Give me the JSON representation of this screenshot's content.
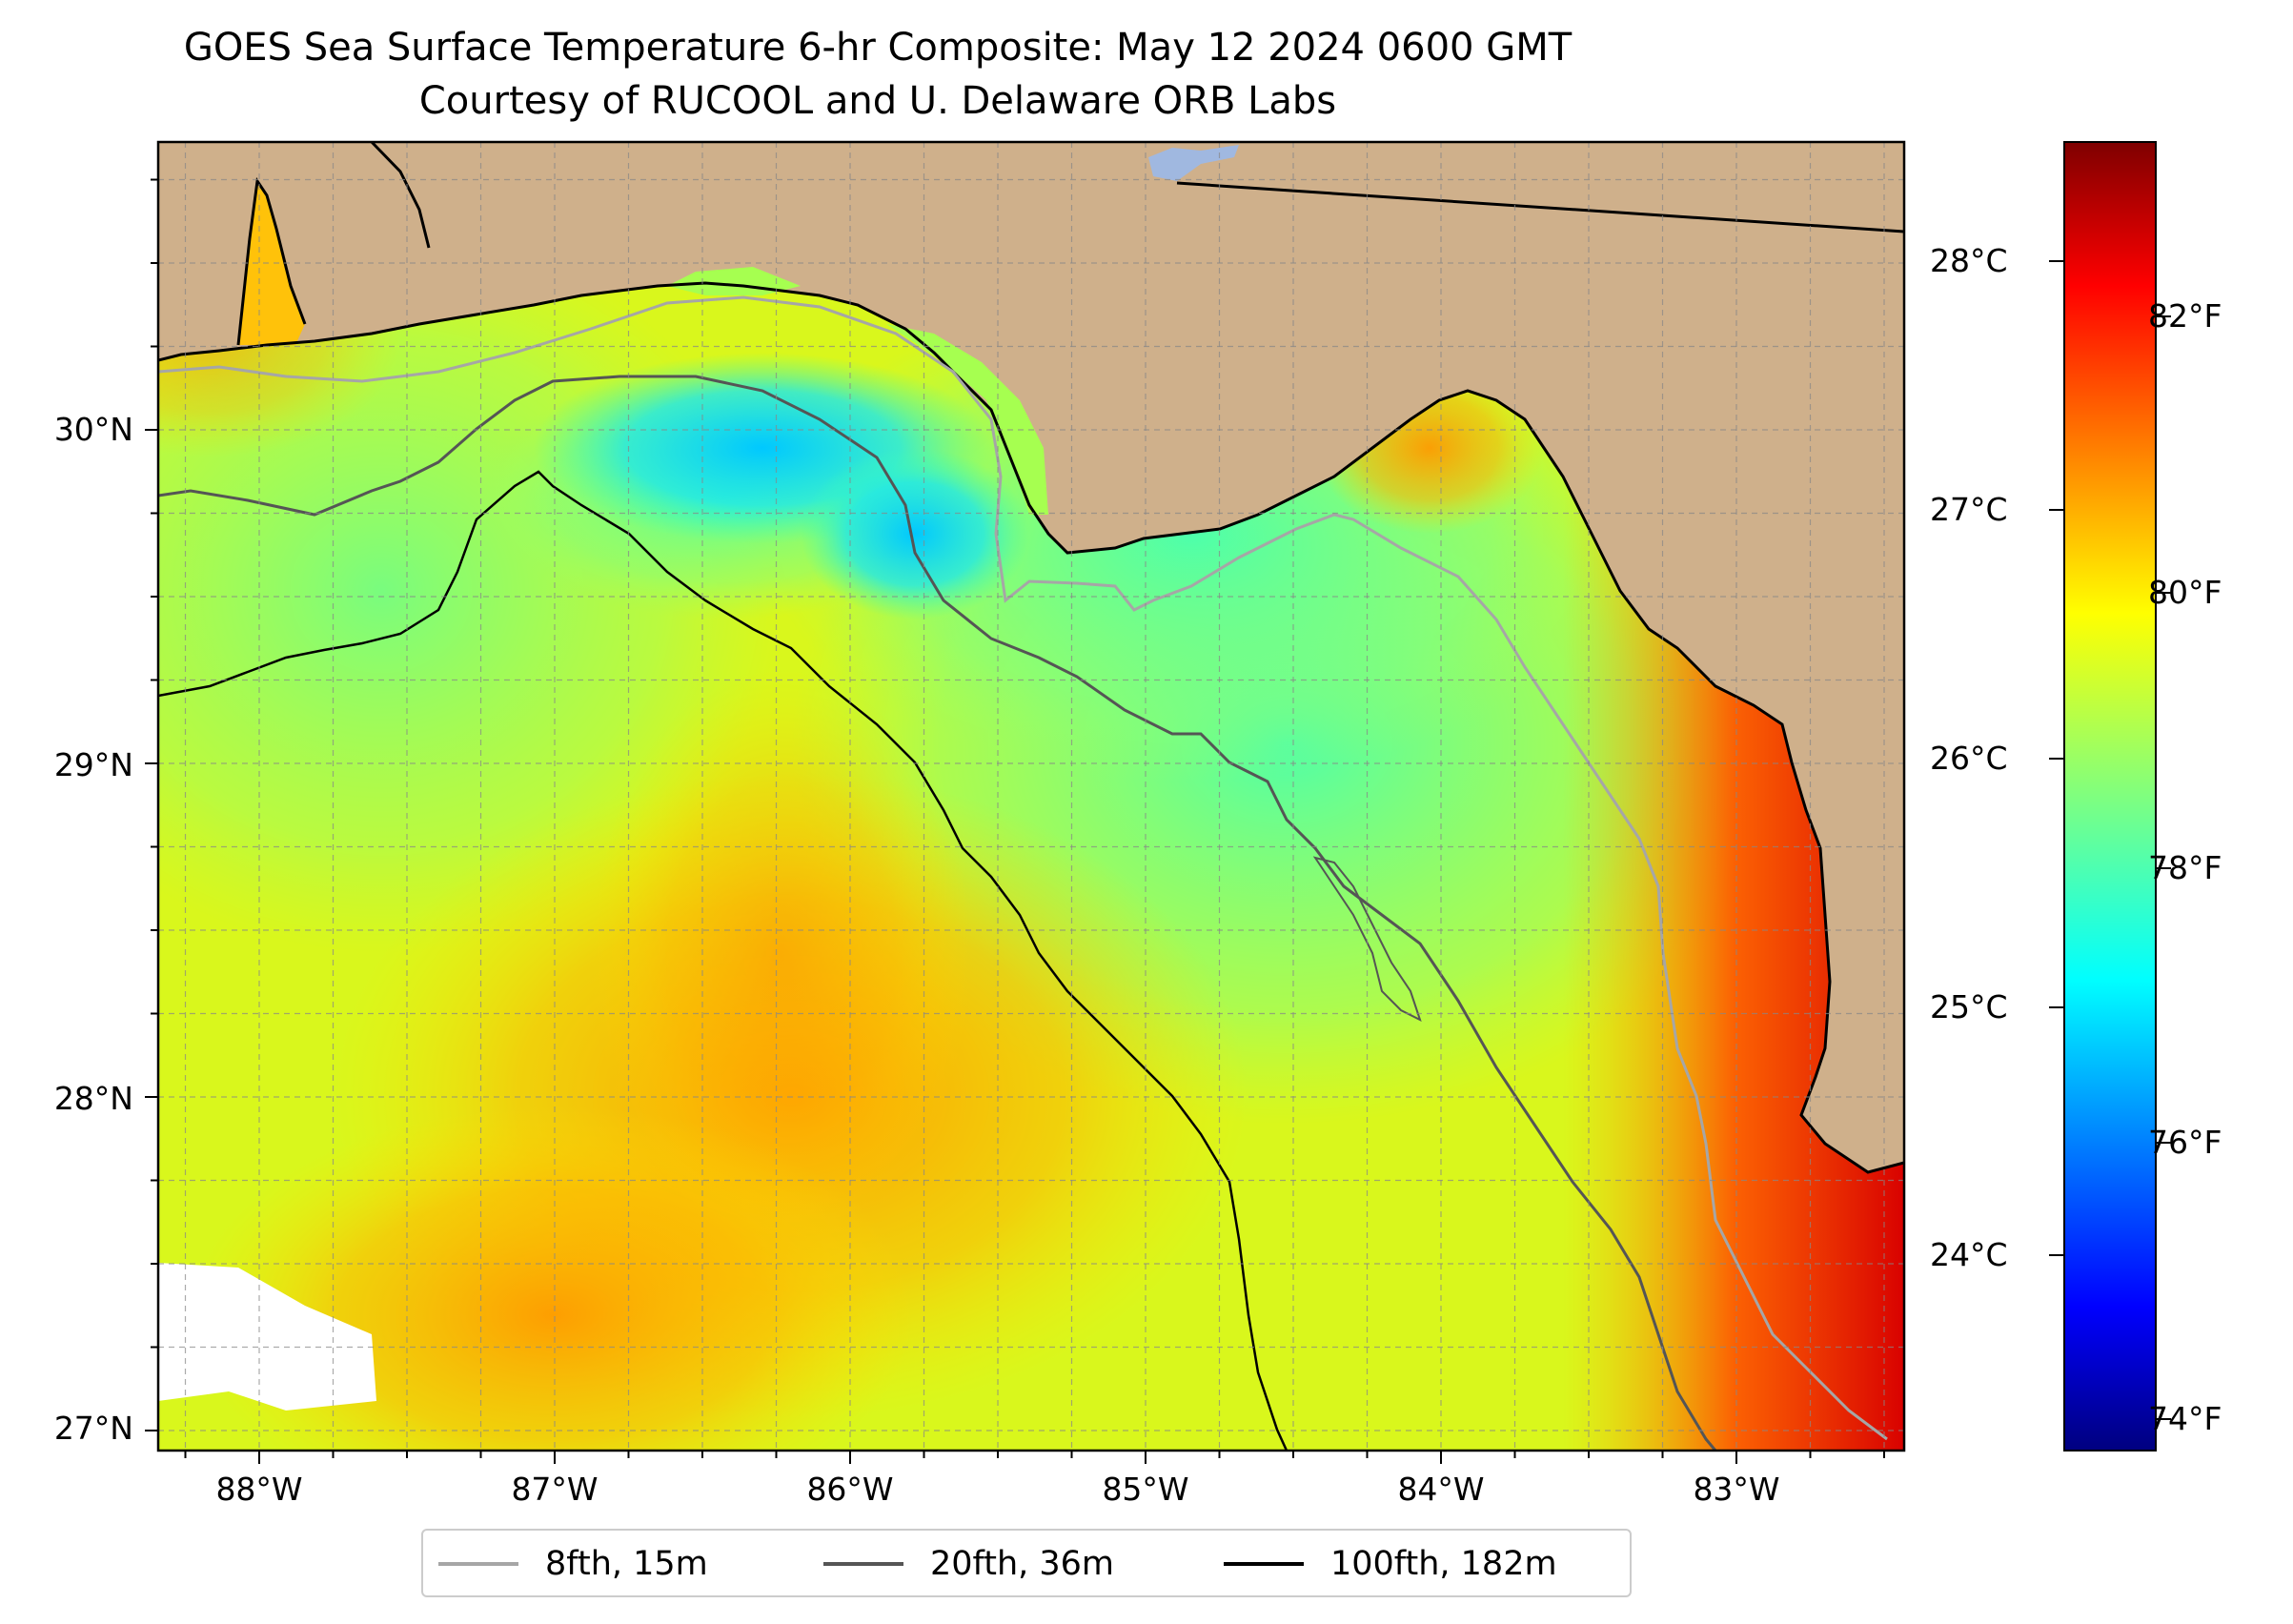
{
  "title": {
    "line1": "GOES Sea Surface Temperature 6-hr Composite: May 12 2024 0600 GMT",
    "line2": "Courtesy of RUCOOL and U. Delaware ORB Labs"
  },
  "map": {
    "lon_labels": [
      "88°W",
      "87°W",
      "86°W",
      "85°W",
      "84°W",
      "83°W"
    ],
    "lat_labels": [
      "30°N",
      "29°N",
      "28°N",
      "27°N"
    ],
    "lon_range": [
      -88.33,
      -82.42
    ],
    "lat_range": [
      26.94,
      30.85
    ],
    "land_color": "#cfb08b",
    "coastline_color": "#000000",
    "gridlines": true,
    "gridline_style": "dashed gray"
  },
  "colorbar": {
    "celsius_labels": [
      "28°C",
      "27°C",
      "26°C",
      "25°C",
      "24°C"
    ],
    "fahrenheit_labels": [
      "82°F",
      "80°F",
      "78°F",
      "76°F",
      "74°F"
    ],
    "range_f": [
      73.6,
      83.0
    ],
    "colormap": "jet",
    "colors": [
      "#00007f",
      "#0000ff",
      "#007fff",
      "#00ffff",
      "#7fff7f",
      "#ffff00",
      "#ff7f00",
      "#ff0000",
      "#7f0000"
    ]
  },
  "legend": {
    "items": [
      {
        "label": "8fth, 15m",
        "color": "#a6a6a6"
      },
      {
        "label": "20fth, 36m",
        "color": "#555555"
      },
      {
        "label": "100fth, 182m",
        "color": "#000000"
      }
    ]
  }
}
